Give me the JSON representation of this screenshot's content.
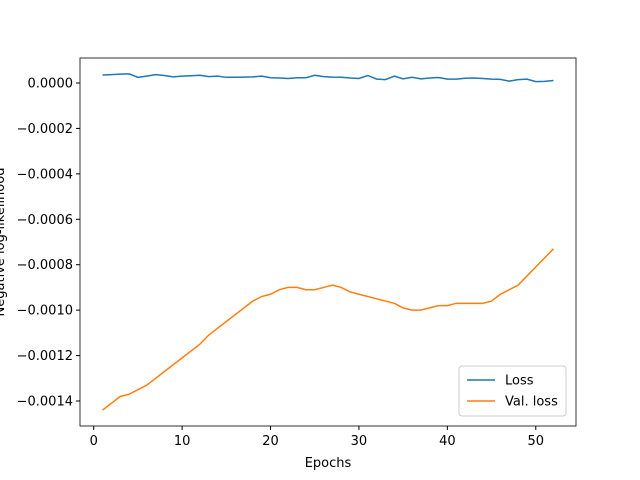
{
  "chart_data": {
    "type": "line",
    "xlabel": "Epochs",
    "ylabel": "Negative log-likelihood",
    "x": [
      1,
      2,
      3,
      4,
      5,
      6,
      7,
      8,
      9,
      10,
      11,
      12,
      13,
      14,
      15,
      16,
      17,
      18,
      19,
      20,
      21,
      22,
      23,
      24,
      25,
      26,
      27,
      28,
      29,
      30,
      31,
      32,
      33,
      34,
      35,
      36,
      37,
      38,
      39,
      40,
      41,
      42,
      43,
      44,
      45,
      46,
      47,
      48,
      49,
      50,
      51,
      52
    ],
    "series": [
      {
        "name": "Loss",
        "color": "#1f77b4",
        "values": [
          3.5e-05,
          3.7e-05,
          3.9e-05,
          4e-05,
          2.5e-05,
          3e-05,
          3.7e-05,
          3.3e-05,
          2.7e-05,
          3e-05,
          3.2e-05,
          3.4e-05,
          2.8e-05,
          3e-05,
          2.5e-05,
          2.5e-05,
          2.6e-05,
          2.7e-05,
          3e-05,
          2.3e-05,
          2.2e-05,
          2e-05,
          2.3e-05,
          2.3e-05,
          3.4e-05,
          2.8e-05,
          2.6e-05,
          2.5e-05,
          2.2e-05,
          2e-05,
          3.3e-05,
          1.7e-05,
          1.5e-05,
          3e-05,
          1.8e-05,
          2.5e-05,
          1.8e-05,
          2.2e-05,
          2.4e-05,
          1.7e-05,
          1.7e-05,
          2.1e-05,
          2.2e-05,
          2e-05,
          1.7e-05,
          1.6e-05,
          8e-06,
          1.5e-05,
          1.7e-05,
          6e-06,
          7e-06,
          1.1e-05
        ]
      },
      {
        "name": "Val. loss",
        "color": "#ff7f0e",
        "values": [
          -0.00144,
          -0.00141,
          -0.00138,
          -0.00137,
          -0.00135,
          -0.00133,
          -0.0013,
          -0.00127,
          -0.00124,
          -0.00121,
          -0.00118,
          -0.00115,
          -0.00111,
          -0.00108,
          -0.00105,
          -0.00102,
          -0.00099,
          -0.00096,
          -0.00094,
          -0.00093,
          -0.00091,
          -0.0009,
          -0.0009,
          -0.00091,
          -0.00091,
          -0.0009,
          -0.00089,
          -0.0009,
          -0.00092,
          -0.00093,
          -0.00094,
          -0.00095,
          -0.00096,
          -0.00097,
          -0.00099,
          -0.001,
          -0.001,
          -0.00099,
          -0.00098,
          -0.00098,
          -0.00097,
          -0.00097,
          -0.00097,
          -0.00097,
          -0.00096,
          -0.00093,
          -0.00091,
          -0.00089,
          -0.00085,
          -0.00081,
          -0.00077,
          -0.00073
        ]
      }
    ],
    "xlim": [
      -1.55,
      54.55
    ],
    "xticks": [
      0,
      10,
      20,
      30,
      40,
      50
    ],
    "ylim": [
      -0.00151,
      0.00011
    ],
    "yticks": [
      {
        "value": 0,
        "label": "0.0000"
      },
      {
        "value": -0.0002,
        "label": "−0.0002"
      },
      {
        "value": -0.0004,
        "label": "−0.0004"
      },
      {
        "value": -0.0006,
        "label": "−0.0006"
      },
      {
        "value": -0.0008,
        "label": "−0.0008"
      },
      {
        "value": -0.001,
        "label": "−0.0010"
      },
      {
        "value": -0.0012,
        "label": "−0.0012"
      },
      {
        "value": -0.0014,
        "label": "−0.0014"
      }
    ],
    "legend": "lower right",
    "grid": false
  }
}
